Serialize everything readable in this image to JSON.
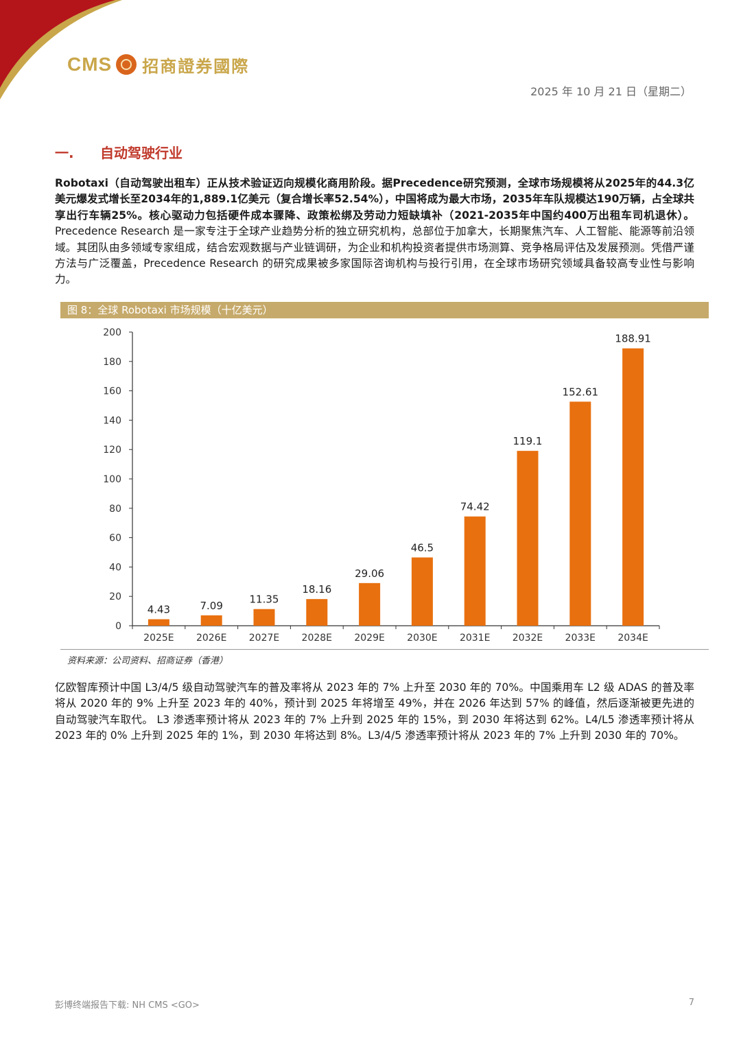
{
  "header": {
    "logo_cms": "CMS",
    "logo_name": "招商證券國際",
    "date": "2025 年 10 月 21 日（星期二）"
  },
  "section": {
    "number": "一.",
    "title": "自动驾驶行业"
  },
  "paragraph1": {
    "bold": "Robotaxi（自动驾驶出租车）正从技术验证迈向规模化商用阶段。据Precedence研究预测，全球市场规模将从2025年的44.3亿美元爆发式增长至2034年的1,889.1亿美元（复合增长率52.54%），中国将成为最大市场，2035年车队规模达190万辆，占全球共享出行车辆25%。核心驱动力包括硬件成本骤降、政策松绑及劳动力短缺填补（2021-2035年中国约400万出租车司机退休）。",
    "normal": "Precedence Research 是一家专注于全球产业趋势分析的独立研究机构，总部位于加拿大，长期聚焦汽车、人工智能、能源等前沿领域。其团队由多领域专家组成，结合宏观数据与产业链调研，为企业和机构投资者提供市场测算、竞争格局评估及发展预测。凭借严谨方法与广泛覆盖，Precedence Research 的研究成果被多家国际咨询机构与投行引用，在全球市场研究领域具备较高专业性与影响力。"
  },
  "figure": {
    "caption": "图 8：全球 Robotaxi 市场规模（十亿美元）",
    "source": "资料来源：公司资料、招商证券（香港）"
  },
  "chart_data": {
    "type": "bar",
    "categories": [
      "2025E",
      "2026E",
      "2027E",
      "2028E",
      "2029E",
      "2030E",
      "2031E",
      "2032E",
      "2033E",
      "2034E"
    ],
    "values": [
      4.43,
      7.09,
      11.35,
      18.16,
      29.06,
      46.5,
      74.42,
      119.1,
      152.61,
      188.91
    ],
    "data_labels": [
      "4.43",
      "7.09",
      "11.35",
      "18.16",
      "29.06",
      "46.5",
      "74.42",
      "119.1",
      "152.61",
      "188.91"
    ],
    "yticks": [
      "0",
      "20",
      "40",
      "60",
      "80",
      "100",
      "120",
      "140",
      "160",
      "180",
      "200"
    ],
    "ylim": [
      0,
      200
    ],
    "bar_color": "#e8700f",
    "grid": false
  },
  "paragraph2": "亿欧智库预计中国 L3/4/5 级自动驾驶汽车的普及率将从 2023 年的 7% 上升至 2030 年的 70%。中国乘用车 L2 级 ADAS 的普及率将从 2020 年的 9% 上升至 2023 年的 40%，预计到 2025 年将增至 49%，并在 2026 年达到 57% 的峰值，然后逐渐被更先进的自动驾驶汽车取代。 L3 渗透率预计将从 2023 年的 7% 上升到 2025 年的 15%，到 2030 年将达到 62%。L4/L5 渗透率预计将从 2023 年的 0% 上升到 2025 年的 1%，到 2030 年将达到 8%。L3/4/5 渗透率预计将从 2023 年的 7% 上升到 2030 年的 70%。",
  "footer": {
    "left": "彭博终端报告下载: NH CMS <GO>",
    "page": "7"
  },
  "colors": {
    "accent_red": "#c0392b",
    "gold": "#c6aa6b",
    "bar": "#e8700f"
  }
}
